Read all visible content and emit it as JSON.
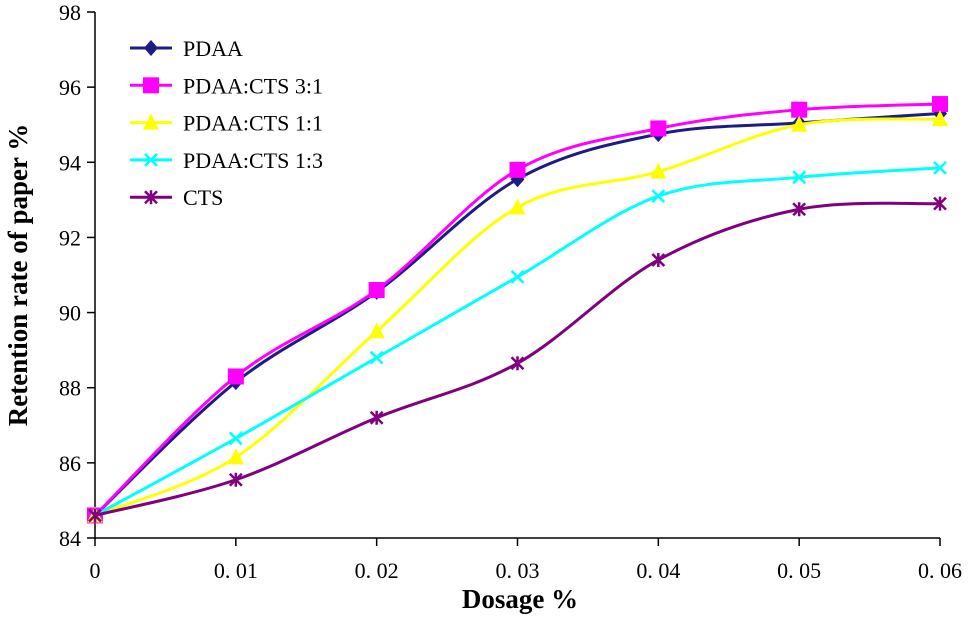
{
  "chart_data": {
    "type": "line",
    "title": "",
    "xlabel": "Dosage %",
    "ylabel": "Retention rate of paper %",
    "xlim": [
      0,
      0.06
    ],
    "ylim": [
      84,
      98
    ],
    "x": [
      0,
      0.01,
      0.02,
      0.03,
      0.04,
      0.05,
      0.06
    ],
    "xtick_labels": [
      "0",
      "0. 01",
      "0. 02",
      "0. 03",
      "0. 04",
      "0. 05",
      "0. 06"
    ],
    "ytick_labels": [
      "84",
      "86",
      "88",
      "90",
      "92",
      "94",
      "96",
      "98"
    ],
    "yticks": [
      84,
      86,
      88,
      90,
      92,
      94,
      96,
      98
    ],
    "grid": false,
    "smoothed": true,
    "legend_placement": "top-left",
    "series": [
      {
        "name": "PDAA",
        "color": "#1c1c84",
        "marker": "diamond",
        "values": [
          84.6,
          88.15,
          90.55,
          93.55,
          94.75,
          95.05,
          95.3
        ]
      },
      {
        "name": "PDAA:CTS 3:1",
        "color": "#ff00ff",
        "marker": "square",
        "values": [
          84.6,
          88.3,
          90.6,
          93.8,
          94.9,
          95.4,
          95.55
        ]
      },
      {
        "name": "PDAA:CTS 1:1",
        "color": "#ffff00",
        "marker": "triangle",
        "values": [
          84.6,
          86.15,
          89.5,
          92.8,
          93.75,
          95.0,
          95.15
        ]
      },
      {
        "name": "PDAA:CTS 1:3",
        "color": "#00ffff",
        "marker": "x",
        "values": [
          84.6,
          86.65,
          88.8,
          90.95,
          93.1,
          93.6,
          93.85
        ]
      },
      {
        "name": "CTS",
        "color": "#800080",
        "marker": "star",
        "values": [
          84.6,
          85.55,
          87.2,
          88.65,
          91.4,
          92.75,
          92.9
        ]
      }
    ]
  }
}
